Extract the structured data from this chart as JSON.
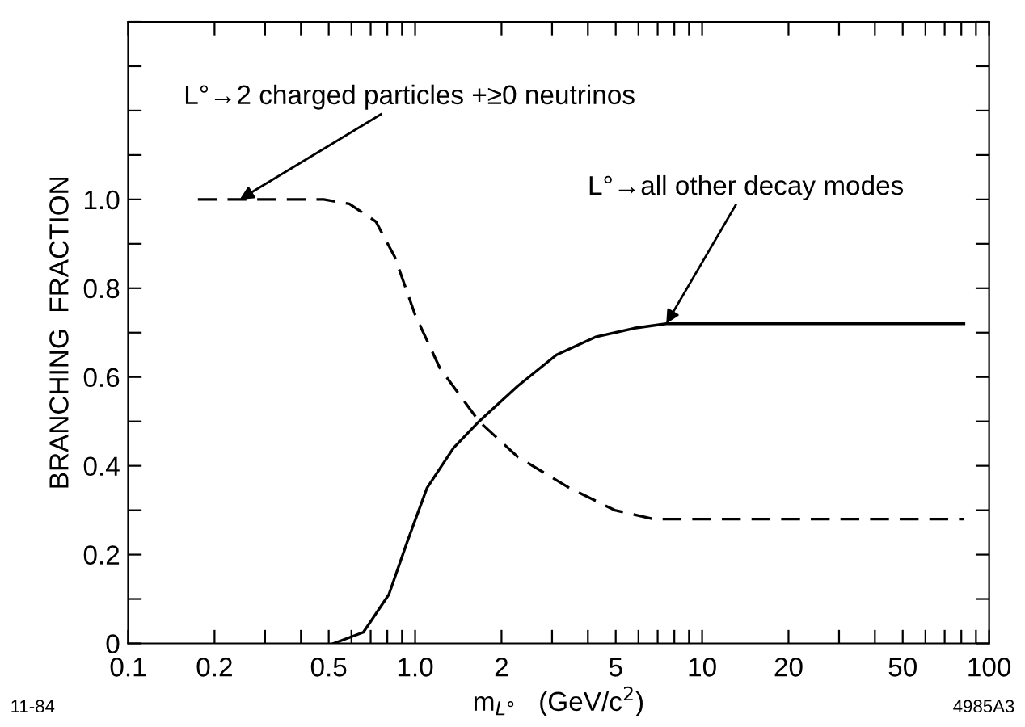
{
  "chart_data": {
    "type": "line",
    "xlabel": "m$_{L°}$   (GeV/c$^{2}$)",
    "ylabel": "BRANCHING  FRACTION",
    "log": "x",
    "grid": false,
    "marker": "none",
    "xlim": [
      0.1,
      100
    ],
    "ylim": [
      0,
      1.4
    ],
    "xticks": [
      0.1,
      0.2,
      {
        "value": 0.3,
        "label": null
      },
      {
        "value": 0.4,
        "label": null
      },
      0.5,
      {
        "value": 0.6,
        "label": null
      },
      {
        "value": 0.7,
        "label": null
      },
      {
        "value": 0.8,
        "label": null
      },
      {
        "value": 0.9,
        "label": null
      },
      {
        "value": 1,
        "label": "1.0"
      },
      2,
      {
        "value": 3,
        "label": null
      },
      {
        "value": 4,
        "label": null
      },
      5,
      {
        "value": 6,
        "label": null
      },
      {
        "value": 7,
        "label": null
      },
      {
        "value": 8,
        "label": null
      },
      {
        "value": 9,
        "label": null
      },
      10,
      20,
      {
        "value": 30,
        "label": null
      },
      {
        "value": 40,
        "label": null
      },
      50,
      {
        "value": 60,
        "label": null
      },
      {
        "value": 70,
        "label": null
      },
      {
        "value": 80,
        "label": null
      },
      {
        "value": 90,
        "label": null
      },
      100
    ],
    "yticks": [
      0,
      {
        "value": 0.1,
        "label": null
      },
      0.2,
      {
        "value": 0.3,
        "label": null
      },
      0.4,
      {
        "value": 0.5,
        "label": null
      },
      0.6,
      {
        "value": 0.7,
        "label": null
      },
      0.8,
      {
        "value": 0.9,
        "label": null
      },
      {
        "value": 1.0,
        "label": "1.0"
      },
      {
        "value": 1.1,
        "label": null
      },
      {
        "value": 1.2,
        "label": null
      },
      {
        "value": 1.3,
        "label": null
      },
      {
        "value": 1.4,
        "label": null
      }
    ],
    "series": [
      {
        "color": "#000000",
        "line_style": "dashed",
        "x": [
          0.175,
          0.48,
          0.59,
          0.73,
          0.85,
          1.0,
          1.22,
          1.67,
          2.28,
          3.45,
          4.96,
          6.78,
          81.7
        ],
        "values": [
          1.0,
          1.0,
          0.99,
          0.95,
          0.87,
          0.74,
          0.62,
          0.5,
          0.42,
          0.35,
          0.3,
          0.28,
          0.28
        ]
      },
      {
        "color": "#000000",
        "line_style": "solid",
        "x": [
          0.52,
          0.66,
          0.81,
          0.94,
          1.1,
          1.36,
          1.67,
          2.28,
          3.11,
          4.25,
          5.8,
          7.5,
          81.7
        ],
        "values": [
          0.0,
          0.025,
          0.11,
          0.23,
          0.35,
          0.44,
          0.5,
          0.58,
          0.65,
          0.69,
          0.71,
          0.72,
          0.72
        ]
      }
    ],
    "annotations": [
      {
        "text": "L°→2 charged particles +≥0 neutrinos",
        "x": 0.245,
        "y": 1.0
      },
      {
        "text": "L°→all other decay modes",
        "x": 7.5,
        "y": 0.72
      },
      "11-84",
      "4985A3"
    ]
  }
}
